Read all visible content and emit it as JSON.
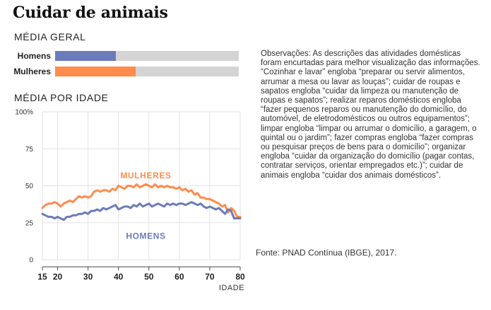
{
  "title": "Cuidar de animais",
  "media_geral": {
    "heading": "MÉDIA GERAL",
    "bars": [
      {
        "name": "Homens",
        "value": 33,
        "color": "#6b7bbb"
      },
      {
        "name": "Mulheres",
        "value": 44,
        "color": "#ff8c4a"
      }
    ],
    "max": 100,
    "track_color": "#d4d4d4"
  },
  "media_idade": {
    "heading": "MÉDIA POR IDADE"
  },
  "chart_data": {
    "type": "line",
    "xlabel": "IDADE",
    "ylabel": "",
    "xlim": [
      15,
      80
    ],
    "ylim": [
      0,
      100
    ],
    "x_ticks": [
      15,
      20,
      30,
      40,
      50,
      60,
      70,
      80
    ],
    "y_ticks": [
      0,
      25,
      50,
      75,
      100
    ],
    "y_tick_labels": [
      "0",
      "25",
      "50",
      "75",
      "100%"
    ],
    "grid": true,
    "x": [
      15,
      16,
      17,
      18,
      19,
      20,
      21,
      22,
      23,
      24,
      25,
      26,
      27,
      28,
      29,
      30,
      31,
      32,
      33,
      34,
      35,
      36,
      37,
      38,
      39,
      40,
      41,
      42,
      43,
      44,
      45,
      46,
      47,
      48,
      49,
      50,
      51,
      52,
      53,
      54,
      55,
      56,
      57,
      58,
      59,
      60,
      61,
      62,
      63,
      64,
      65,
      66,
      67,
      68,
      69,
      70,
      71,
      72,
      73,
      74,
      75,
      76,
      77,
      78,
      79,
      80
    ],
    "series": [
      {
        "name": "MULHERES",
        "color": "#ff8c4a",
        "values": [
          35,
          37,
          38,
          38,
          39,
          38,
          36,
          38,
          39,
          40,
          39,
          41,
          43,
          42,
          43,
          42,
          43,
          46,
          47,
          46,
          47,
          47,
          46,
          48,
          47,
          50,
          49,
          48,
          50,
          50,
          49,
          51,
          49,
          50,
          51,
          50,
          49,
          51,
          49,
          50,
          49,
          50,
          49,
          49,
          48,
          49,
          47,
          48,
          46,
          47,
          44,
          45,
          42,
          42,
          41,
          41,
          40,
          39,
          38,
          36,
          37,
          32,
          35,
          33,
          29,
          29
        ],
        "label_pos": [
          49,
          55
        ]
      },
      {
        "name": "HOMENS",
        "color": "#6b7bbb",
        "values": [
          31,
          30,
          29,
          29,
          28,
          29,
          28,
          27,
          29,
          29,
          30,
          30,
          31,
          31,
          32,
          31,
          33,
          33,
          34,
          33,
          35,
          34,
          35,
          36,
          37,
          34,
          35,
          36,
          36,
          35,
          37,
          36,
          38,
          36,
          37,
          38,
          36,
          37,
          38,
          37,
          36,
          38,
          37,
          38,
          37,
          38,
          38,
          37,
          38,
          39,
          38,
          37,
          38,
          36,
          35,
          36,
          35,
          34,
          35,
          33,
          31,
          34,
          33,
          28,
          28,
          28
        ],
        "label_pos": [
          49,
          14
        ]
      }
    ]
  },
  "notes": "Observações: As descrições das atividades domésticas foram encurtadas para melhor visualização das informações. “Cozinhar e lavar” engloba “preparar ou servir alimentos, arrumar a mesa ou lavar as louças”; cuidar de roupas e sapatos engloba “cuidar da limpeza ou manutenção de roupas e sapatos”; realizar reparos domésticos engloba “fazer pequenos reparos ou manutenção do domicílio, do automóvel, de eletrodomésticos ou outros equipamentos”; limpar engloba “limpar ou arrumar o domicílio, a garagem, o quintal ou o jardim”; fazer compras engloba “fazer compras ou pesquisar preços de bens para o domicílio”; organizar engloba “cuidar da organização do domicílio (pagar contas, contratar serviços, orientar empregados etc.)”; cuidar de animais engloba “cuidar dos animais domésticos”.",
  "source": "Fonte: PNAD Contínua (IBGE), 2017."
}
